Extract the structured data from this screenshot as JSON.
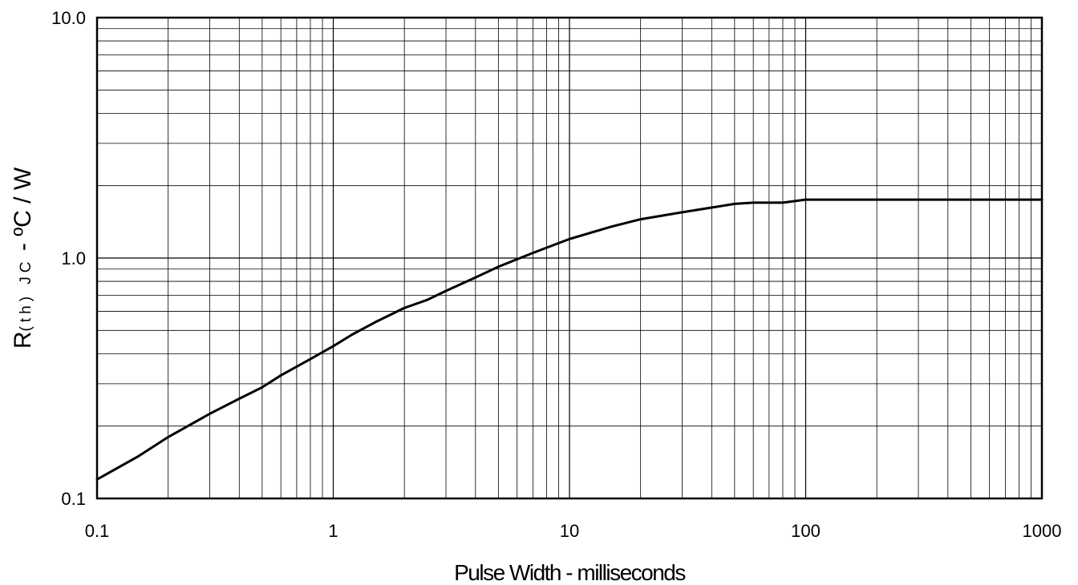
{
  "chart_data": {
    "type": "line",
    "title": "",
    "x_scale": "log",
    "y_scale": "log",
    "xlim": [
      0.1,
      1000
    ],
    "ylim": [
      0.1,
      10
    ],
    "grid": true,
    "xlabel": "Pulse Width - milliseconds",
    "ylabel": {
      "main": "R",
      "subscript": "(th) JC",
      "suffix": " - ºC / W"
    },
    "x_tick_labels": [
      "0.1",
      "1",
      "10",
      "100",
      "1000"
    ],
    "y_tick_labels": [
      "0.1",
      "1.0",
      "10.0"
    ],
    "line_color": "#000000",
    "series": [
      {
        "x": [
          0.1,
          0.15,
          0.2,
          0.3,
          0.4,
          0.5,
          0.6,
          0.8,
          1.0,
          1.2,
          1.5,
          2.0,
          2.5,
          3.0,
          4.0,
          5.0,
          7.0,
          10,
          15,
          20,
          30,
          50,
          60,
          80,
          100,
          200,
          500,
          1000
        ],
        "y": [
          0.12,
          0.15,
          0.18,
          0.225,
          0.26,
          0.29,
          0.325,
          0.38,
          0.43,
          0.48,
          0.54,
          0.62,
          0.67,
          0.73,
          0.83,
          0.92,
          1.05,
          1.2,
          1.35,
          1.45,
          1.55,
          1.68,
          1.7,
          1.7,
          1.75,
          1.75,
          1.75,
          1.75
        ]
      }
    ]
  }
}
